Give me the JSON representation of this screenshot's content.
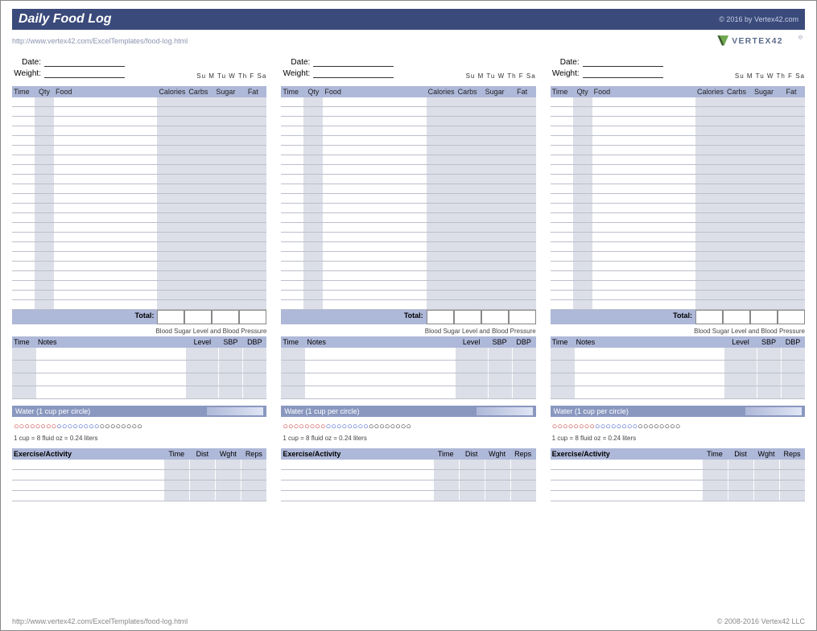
{
  "header": {
    "title": "Daily Food Log",
    "copyright": "© 2016 by Vertex42.com",
    "url": "http://www.vertex42.com/ExcelTemplates/food-log.html",
    "logo_text": "VERTEX42"
  },
  "labels": {
    "date": "Date:",
    "weight": "Weight:",
    "days": "Su M Tu W Th F Sa",
    "food_headers": {
      "time": "Time",
      "qty": "Qty",
      "food": "Food",
      "calories": "Calories",
      "carbs": "Carbs",
      "sugar": "Sugar",
      "fat": "Fat"
    },
    "total": "Total:",
    "bp_title": "Blood Sugar Level and Blood Pressure",
    "bp_headers": {
      "time": "Time",
      "notes": "Notes",
      "level": "Level",
      "sbp": "SBP",
      "dbp": "DBP"
    },
    "water_title": "Water (1 cup per circle)",
    "water_note": "1 cup = 8 fluid oz = 0.24 liters",
    "ex_title": "Exercise/Activity",
    "ex_headers": {
      "time": "Time",
      "dist": "Dist",
      "wght": "Wght",
      "reps": "Reps"
    }
  },
  "layout": {
    "panel_count": 3,
    "food_rows": 22,
    "bp_rows": 4,
    "ex_rows": 4,
    "water_circles": {
      "red": 8,
      "blue": 8,
      "black": 8
    }
  },
  "colors": {
    "title_bar": "#3a4a7a",
    "header_band": "#aeb8d8",
    "alt_cell": "#dcdfe8",
    "water_band": "#8a98c0",
    "grid_line": "#bcc0cc"
  },
  "footer": {
    "url": "http://www.vertex42.com/ExcelTemplates/food-log.html",
    "copyright": "© 2008-2016 Vertex42 LLC"
  }
}
